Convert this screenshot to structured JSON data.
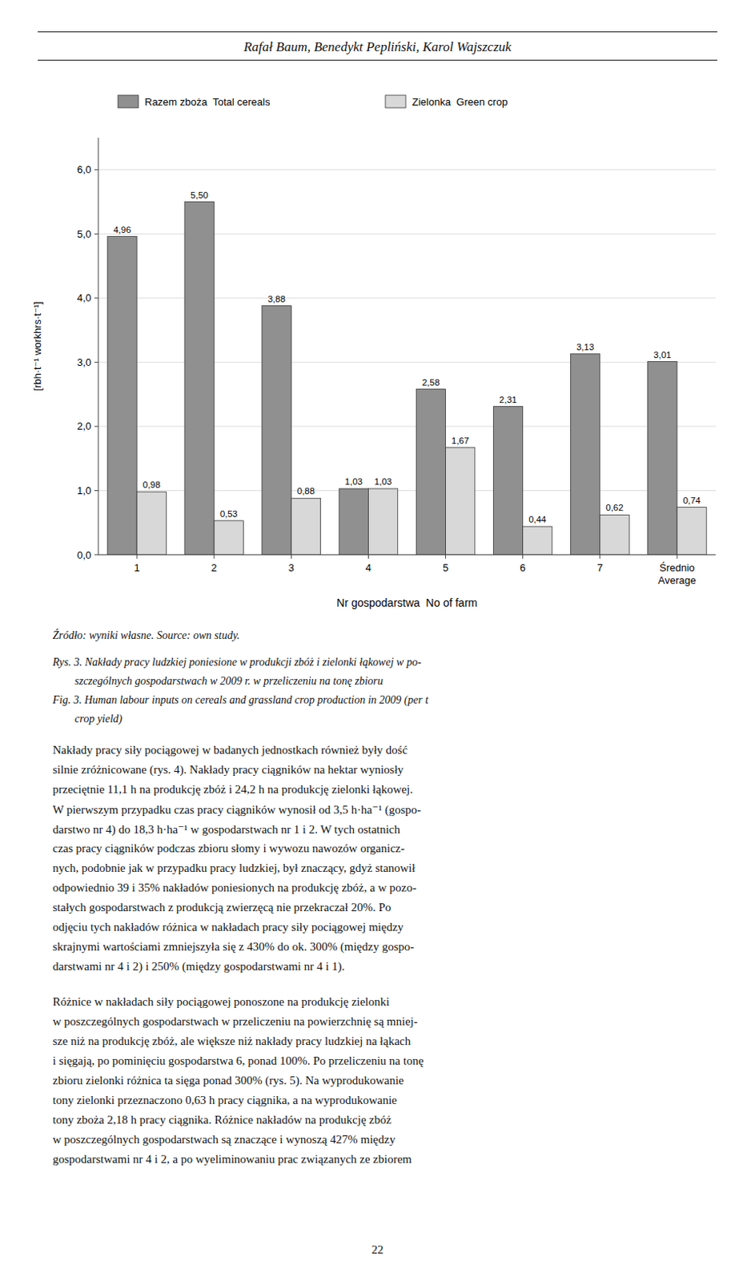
{
  "chart_data": {
    "type": "bar",
    "categories": [
      "1",
      "2",
      "3",
      "4",
      "5",
      "6",
      "7",
      "Średnio\nAverage"
    ],
    "series": [
      {
        "name": "Razem zboża  Total cereals",
        "color": "#909090",
        "values": [
          4.96,
          5.5,
          3.88,
          1.03,
          2.58,
          2.31,
          3.13,
          3.01
        ],
        "value_labels": [
          "4,96",
          "5,50",
          "3,88",
          "1,03",
          "2,58",
          "2,31",
          "3,13",
          "3,01"
        ]
      },
      {
        "name": "Zielonka  Green crop",
        "color": "#d8d8d8",
        "values": [
          0.98,
          0.53,
          0.88,
          1.03,
          1.67,
          0.44,
          0.62,
          0.74
        ],
        "value_labels": [
          "0,98",
          "0,53",
          "0,88",
          "1,03",
          "1,67",
          "0,44",
          "0,62",
          "0,74"
        ]
      }
    ],
    "x_label": "Nr gospodarstwa  No of farm",
    "y_label": "[rbh·t⁻¹ workhrs·t⁻¹]",
    "ylim": [
      0.0,
      6.5
    ],
    "yticks": [
      {
        "value": 0.0,
        "label": "0,0"
      },
      {
        "value": 1.0,
        "label": "1,0"
      },
      {
        "value": 2.0,
        "label": "2,0"
      },
      {
        "value": 3.0,
        "label": "3,0"
      },
      {
        "value": 4.0,
        "label": "4,0"
      },
      {
        "value": 5.0,
        "label": "5,0"
      },
      {
        "value": 6.0,
        "label": "6,0"
      }
    ],
    "grid": true,
    "legend": "top",
    "data_labels": true
  },
  "page": {
    "header": "Rafał Baum, Benedykt Pepliński, Karol Wajszczuk",
    "source": "Źródło: wyniki własne. Source: own study.",
    "caption": [
      "Rys. 3. Nakłady pracy ludzkiej poniesione w produkcji zbóż i zielonki łąkowej w po-",
      "        szczególnych gospodarstwach w 2009 r. w przeliczeniu na tonę zbioru",
      "Fig. 3. Human labour inputs on cereals and grassland crop production in 2009 (per t",
      "        crop yield)"
    ],
    "body": [
      [
        "Nakłady pracy siły pociągowej w badanych jednostkach również były dość",
        "silnie zróżnicowane (rys. 4). Nakłady pracy ciągników na hektar wyniosły",
        "przeciętnie 11,1 h na produkcję zbóż i 24,2 h na produkcję zielonki łąkowej.",
        "W pierwszym przypadku czas pracy ciągników wynosił od 3,5 h·ha⁻¹ (gospo-",
        "darstwo nr 4) do 18,3 h·ha⁻¹ w gospodarstwach nr 1 i 2. W tych ostatnich",
        "czas pracy ciągników podczas zbioru słomy i wywozu nawozów organicz-",
        "nych, podobnie jak w przypadku pracy ludzkiej, był znaczący, gdyż stanowił",
        "odpowiednio 39 i 35% nakładów poniesionych na produkcję zbóż, a w pozo-",
        "stałych gospodarstwach z produkcją zwierzęcą nie przekraczał 20%. Po",
        "odjęciu tych nakładów różnica w nakładach pracy siły pociągowej między",
        "skrajnymi wartościami zmniejszyła się z 430% do ok. 300% (między gospo-",
        "darstwami nr 4 i 2) i 250% (między gospodarstwami nr 4 i 1)."
      ],
      [
        "Różnice w nakładach siły pociągowej ponoszone na produkcję zielonki",
        "w poszczególnych gospodarstwach w przeliczeniu na powierzchnię są mniej-",
        "sze niż na produkcję zbóż, ale większe niż nakłady pracy ludzkiej na łąkach",
        "i sięgają, po pominięciu gospodarstwa 6, ponad 100%. Po przeliczeniu na tonę",
        "zbioru zielonki różnica ta sięga ponad 300% (rys. 5). Na wyprodukowanie",
        "tony zielonki przeznaczono 0,63 h pracy ciągnika, a na wyprodukowanie",
        "tony zboża 2,18 h pracy ciągnika. Różnice nakładów na produkcję zbóż",
        "w poszczególnych gospodarstwach są znaczące i wynoszą 427% między",
        "gospodarstwami nr 4 i 2, a po wyeliminowaniu prac związanych ze zbiorem"
      ]
    ],
    "page_number": "22"
  }
}
